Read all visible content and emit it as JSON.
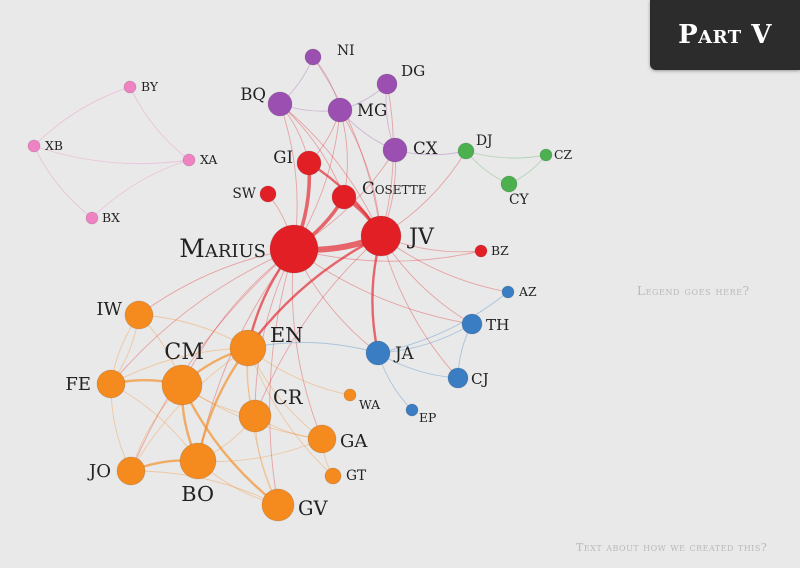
{
  "part_label": "Part V",
  "legend_text": "Legend goes here?",
  "footer_text": "Text about how we created this?",
  "colors": {
    "pink": "#ee82c2",
    "purple": "#9b4fb0",
    "red": "#e31f26",
    "green": "#4cb04f",
    "blue": "#3a7dc2",
    "orange": "#f58a1f"
  },
  "nodes": [
    {
      "id": "NI",
      "label": "NI",
      "group": "purple",
      "weight": 2
    },
    {
      "id": "DG",
      "label": "DG",
      "group": "purple",
      "weight": 3
    },
    {
      "id": "BQ",
      "label": "BQ",
      "group": "purple",
      "weight": 4
    },
    {
      "id": "MG",
      "label": "MG",
      "group": "purple",
      "weight": 4
    },
    {
      "id": "CX",
      "label": "CX",
      "group": "purple",
      "weight": 4
    },
    {
      "id": "BY",
      "label": "BY",
      "group": "pink",
      "weight": 1
    },
    {
      "id": "XB",
      "label": "XB",
      "group": "pink",
      "weight": 1
    },
    {
      "id": "XA",
      "label": "XA",
      "group": "pink",
      "weight": 1
    },
    {
      "id": "BX",
      "label": "BX",
      "group": "pink",
      "weight": 1
    },
    {
      "id": "GI",
      "label": "GI",
      "group": "red",
      "weight": 4
    },
    {
      "id": "SW",
      "label": "SW",
      "group": "red",
      "weight": 2
    },
    {
      "id": "COSETTE",
      "label": "Cosette",
      "group": "red",
      "weight": 4
    },
    {
      "id": "MARIUS",
      "label": "Marius",
      "group": "red",
      "weight": 10
    },
    {
      "id": "JV",
      "label": "JV",
      "group": "red",
      "weight": 8
    },
    {
      "id": "BZ",
      "label": "BZ",
      "group": "red",
      "weight": 1
    },
    {
      "id": "DJ",
      "label": "DJ",
      "group": "green",
      "weight": 2
    },
    {
      "id": "CZ",
      "label": "CZ",
      "group": "green",
      "weight": 1
    },
    {
      "id": "CY",
      "label": "CY",
      "group": "green",
      "weight": 2
    },
    {
      "id": "AZ",
      "label": "AZ",
      "group": "blue",
      "weight": 1
    },
    {
      "id": "TH",
      "label": "TH",
      "group": "blue",
      "weight": 3
    },
    {
      "id": "JA",
      "label": "JA",
      "group": "blue",
      "weight": 4
    },
    {
      "id": "CJ",
      "label": "CJ",
      "group": "blue",
      "weight": 3
    },
    {
      "id": "EP",
      "label": "EP",
      "group": "blue",
      "weight": 1
    },
    {
      "id": "WA",
      "label": "WA",
      "group": "orange",
      "weight": 1
    },
    {
      "id": "GT",
      "label": "GT",
      "group": "orange",
      "weight": 2
    },
    {
      "id": "IW",
      "label": "IW",
      "group": "orange",
      "weight": 5
    },
    {
      "id": "EN",
      "label": "EN",
      "group": "orange",
      "weight": 7
    },
    {
      "id": "CM",
      "label": "CM",
      "group": "orange",
      "weight": 8
    },
    {
      "id": "FE",
      "label": "FE",
      "group": "orange",
      "weight": 5
    },
    {
      "id": "CR",
      "label": "CR",
      "group": "orange",
      "weight": 6
    },
    {
      "id": "GA",
      "label": "GA",
      "group": "orange",
      "weight": 5
    },
    {
      "id": "JO",
      "label": "JO",
      "group": "orange",
      "weight": 5
    },
    {
      "id": "BO",
      "label": "BO",
      "group": "orange",
      "weight": 7
    },
    {
      "id": "GV",
      "label": "GV",
      "group": "orange",
      "weight": 6
    }
  ],
  "links": [
    [
      "MARIUS",
      "JV",
      5
    ],
    [
      "MARIUS",
      "COSETTE",
      3
    ],
    [
      "MARIUS",
      "GI",
      3
    ],
    [
      "JV",
      "COSETTE",
      3
    ],
    [
      "JV",
      "GI",
      2
    ],
    [
      "JV",
      "JA",
      2
    ],
    [
      "MARIUS",
      "EN",
      2
    ],
    [
      "MARIUS",
      "CM",
      1
    ],
    [
      "MARIUS",
      "BO",
      1
    ],
    [
      "MARIUS",
      "IW",
      1
    ],
    [
      "MARIUS",
      "FE",
      1
    ],
    [
      "MARIUS",
      "CR",
      1
    ],
    [
      "MARIUS",
      "GA",
      1
    ],
    [
      "MARIUS",
      "JO",
      1
    ],
    [
      "MARIUS",
      "GV",
      1
    ],
    [
      "MARIUS",
      "SW",
      1
    ],
    [
      "MARIUS",
      "MG",
      1
    ],
    [
      "MARIUS",
      "BQ",
      1
    ],
    [
      "MARIUS",
      "TH",
      1
    ],
    [
      "MARIUS",
      "JA",
      1
    ],
    [
      "MARIUS",
      "CX",
      1
    ],
    [
      "MARIUS",
      "BZ",
      1
    ],
    [
      "JV",
      "CX",
      1
    ],
    [
      "JV",
      "MG",
      1
    ],
    [
      "JV",
      "BQ",
      1
    ],
    [
      "JV",
      "DG",
      1
    ],
    [
      "JV",
      "NI",
      1
    ],
    [
      "JV",
      "TH",
      1
    ],
    [
      "JV",
      "CJ",
      1
    ],
    [
      "JV",
      "AZ",
      1
    ],
    [
      "JV",
      "DJ",
      1
    ],
    [
      "JV",
      "BZ",
      1
    ],
    [
      "JV",
      "EN",
      2
    ],
    [
      "JV",
      "CR",
      1
    ],
    [
      "COSETTE",
      "MG",
      1
    ],
    [
      "COSETTE",
      "BQ",
      1
    ],
    [
      "GI",
      "BQ",
      1
    ],
    [
      "GI",
      "MG",
      1
    ],
    [
      "BQ",
      "MG",
      1
    ],
    [
      "BQ",
      "NI",
      1
    ],
    [
      "MG",
      "NI",
      1
    ],
    [
      "MG",
      "DG",
      1
    ],
    [
      "MG",
      "CX",
      1
    ],
    [
      "DG",
      "CX",
      1
    ],
    [
      "CX",
      "DJ",
      1
    ],
    [
      "DJ",
      "CY",
      1
    ],
    [
      "CY",
      "CZ",
      1
    ],
    [
      "DJ",
      "CZ",
      1
    ],
    [
      "BY",
      "XB",
      1
    ],
    [
      "BY",
      "XA",
      1
    ],
    [
      "XB",
      "BX",
      1
    ],
    [
      "XA",
      "BX",
      1
    ],
    [
      "XB",
      "XA",
      1
    ],
    [
      "JA",
      "TH",
      1
    ],
    [
      "JA",
      "CJ",
      1
    ],
    [
      "JA",
      "EP",
      1
    ],
    [
      "JA",
      "EN",
      1
    ],
    [
      "TH",
      "CJ",
      1
    ],
    [
      "JA",
      "AZ",
      1
    ],
    [
      "EN",
      "CM",
      2
    ],
    [
      "EN",
      "BO",
      2
    ],
    [
      "EN",
      "CR",
      1
    ],
    [
      "EN",
      "IW",
      1
    ],
    [
      "EN",
      "FE",
      1
    ],
    [
      "EN",
      "JO",
      1
    ],
    [
      "EN",
      "GA",
      1
    ],
    [
      "EN",
      "GV",
      1
    ],
    [
      "EN",
      "GT",
      1
    ],
    [
      "EN",
      "WA",
      1
    ],
    [
      "CM",
      "BO",
      2
    ],
    [
      "CM",
      "FE",
      2
    ],
    [
      "CM",
      "IW",
      1
    ],
    [
      "CM",
      "JO",
      1
    ],
    [
      "CM",
      "CR",
      1
    ],
    [
      "CM",
      "GV",
      2
    ],
    [
      "CM",
      "GA",
      1
    ],
    [
      "BO",
      "JO",
      2
    ],
    [
      "BO",
      "GV",
      1
    ],
    [
      "BO",
      "CR",
      1
    ],
    [
      "BO",
      "FE",
      1
    ],
    [
      "BO",
      "GA",
      1
    ],
    [
      "FE",
      "JO",
      1
    ],
    [
      "FE",
      "IW",
      1
    ],
    [
      "CR",
      "GA",
      1
    ],
    [
      "CR",
      "GV",
      1
    ],
    [
      "GA",
      "GT",
      1
    ],
    [
      "IW",
      "FE",
      1
    ],
    [
      "GV",
      "JO",
      1
    ]
  ]
}
